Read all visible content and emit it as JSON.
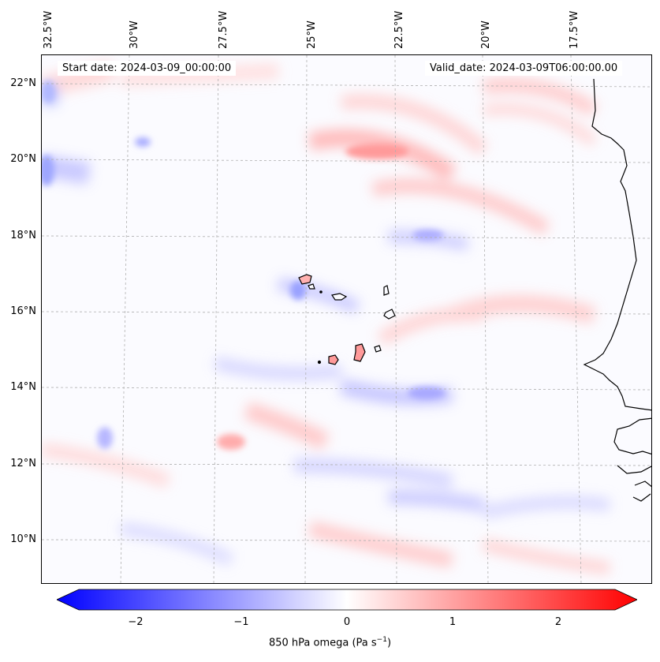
{
  "map": {
    "start_date": "Start date: 2024-03-09_00:00:00",
    "valid_date": "Valid_date: 2024-03-09T06:00:00.00",
    "lon_labels": [
      "32.5°W",
      "30°W",
      "27.5°W",
      "25°W",
      "22.5°W",
      "20°W",
      "17.5°W"
    ],
    "lat_labels": [
      "22°N",
      "20°N",
      "18°N",
      "16°N",
      "14°N",
      "12°N",
      "10°N"
    ],
    "field": "850 hPa omega",
    "colormap": {
      "negative": "#0000ff",
      "zero": "#ffffff",
      "positive": "#ff0000"
    }
  },
  "colorbar": {
    "ticks": [
      "−2",
      "−1",
      "0",
      "1",
      "2"
    ],
    "label": "850 hPa omega (Pa s",
    "label_sup": "−1",
    "label_end": ")",
    "range": [
      -2.75,
      2.75
    ]
  }
}
